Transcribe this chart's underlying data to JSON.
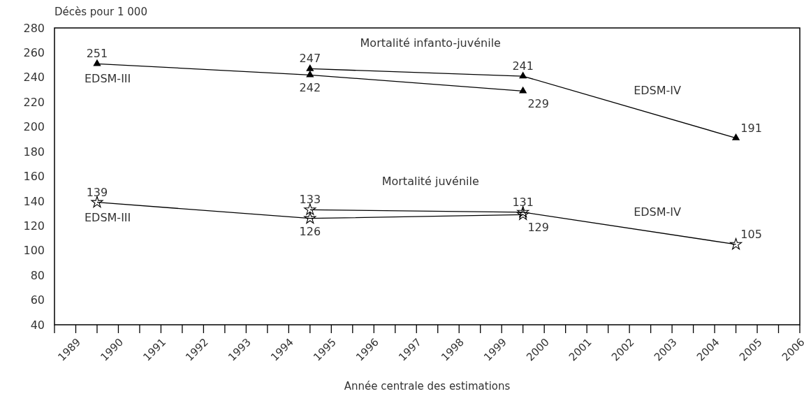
{
  "chart_data": {
    "type": "line",
    "ylabel": "Décès pour 1 000",
    "xlabel": "Année centrale des estimations",
    "xlim": [
      1988.5,
      2006
    ],
    "xticks": [
      {
        "value": 1988.5,
        "label": null
      },
      1989,
      {
        "value": 1989.5,
        "label": null
      },
      1990,
      {
        "value": 1990.5,
        "label": null
      },
      1991,
      {
        "value": 1991.5,
        "label": null
      },
      1992,
      {
        "value": 1992.5,
        "label": null
      },
      1993,
      {
        "value": 1993.5,
        "label": null
      },
      1994,
      {
        "value": 1994.5,
        "label": null
      },
      1995,
      {
        "value": 1995.5,
        "label": null
      },
      1996,
      {
        "value": 1996.5,
        "label": null
      },
      1997,
      {
        "value": 1997.5,
        "label": null
      },
      1998,
      {
        "value": 1998.5,
        "label": null
      },
      1999,
      {
        "value": 1999.5,
        "label": null
      },
      2000,
      {
        "value": 2000.5,
        "label": null
      },
      2001,
      {
        "value": 2001.5,
        "label": null
      },
      2002,
      {
        "value": 2002.5,
        "label": null
      },
      2003,
      {
        "value": 2003.5,
        "label": null
      },
      2004,
      {
        "value": 2004.5,
        "label": null
      },
      2005,
      {
        "value": 2005.5,
        "label": null
      },
      2006
    ],
    "ylim": [
      40,
      280
    ],
    "yticks": [
      40,
      60,
      80,
      100,
      120,
      140,
      160,
      180,
      200,
      220,
      240,
      260,
      280
    ],
    "data_labels": true,
    "series": [
      {
        "name": "EDSM-III",
        "color": "#000000",
        "marker": "triangle",
        "x": [
          1989.5,
          1994.5,
          1999.5
        ],
        "values": [
          251,
          242,
          229
        ]
      },
      {
        "name": "EDSM-IV",
        "color": "#000000",
        "marker": "triangle",
        "x": [
          1994.5,
          1999.5,
          2004.5
        ],
        "values": [
          247,
          241,
          191
        ]
      },
      {
        "name": "EDSM-III",
        "color": "#000000",
        "marker": "star",
        "x": [
          1989.5,
          1994.5,
          1999.5
        ],
        "values": [
          139,
          126,
          129
        ]
      },
      {
        "name": "EDSM-IV",
        "color": "#000000",
        "marker": "star",
        "x": [
          1994.5,
          1999.5,
          2004.5
        ],
        "values": [
          133,
          131,
          105
        ]
      }
    ],
    "annotations": [
      "Mortalité infanto-juvénile",
      "Mortalité juvénile"
    ]
  }
}
